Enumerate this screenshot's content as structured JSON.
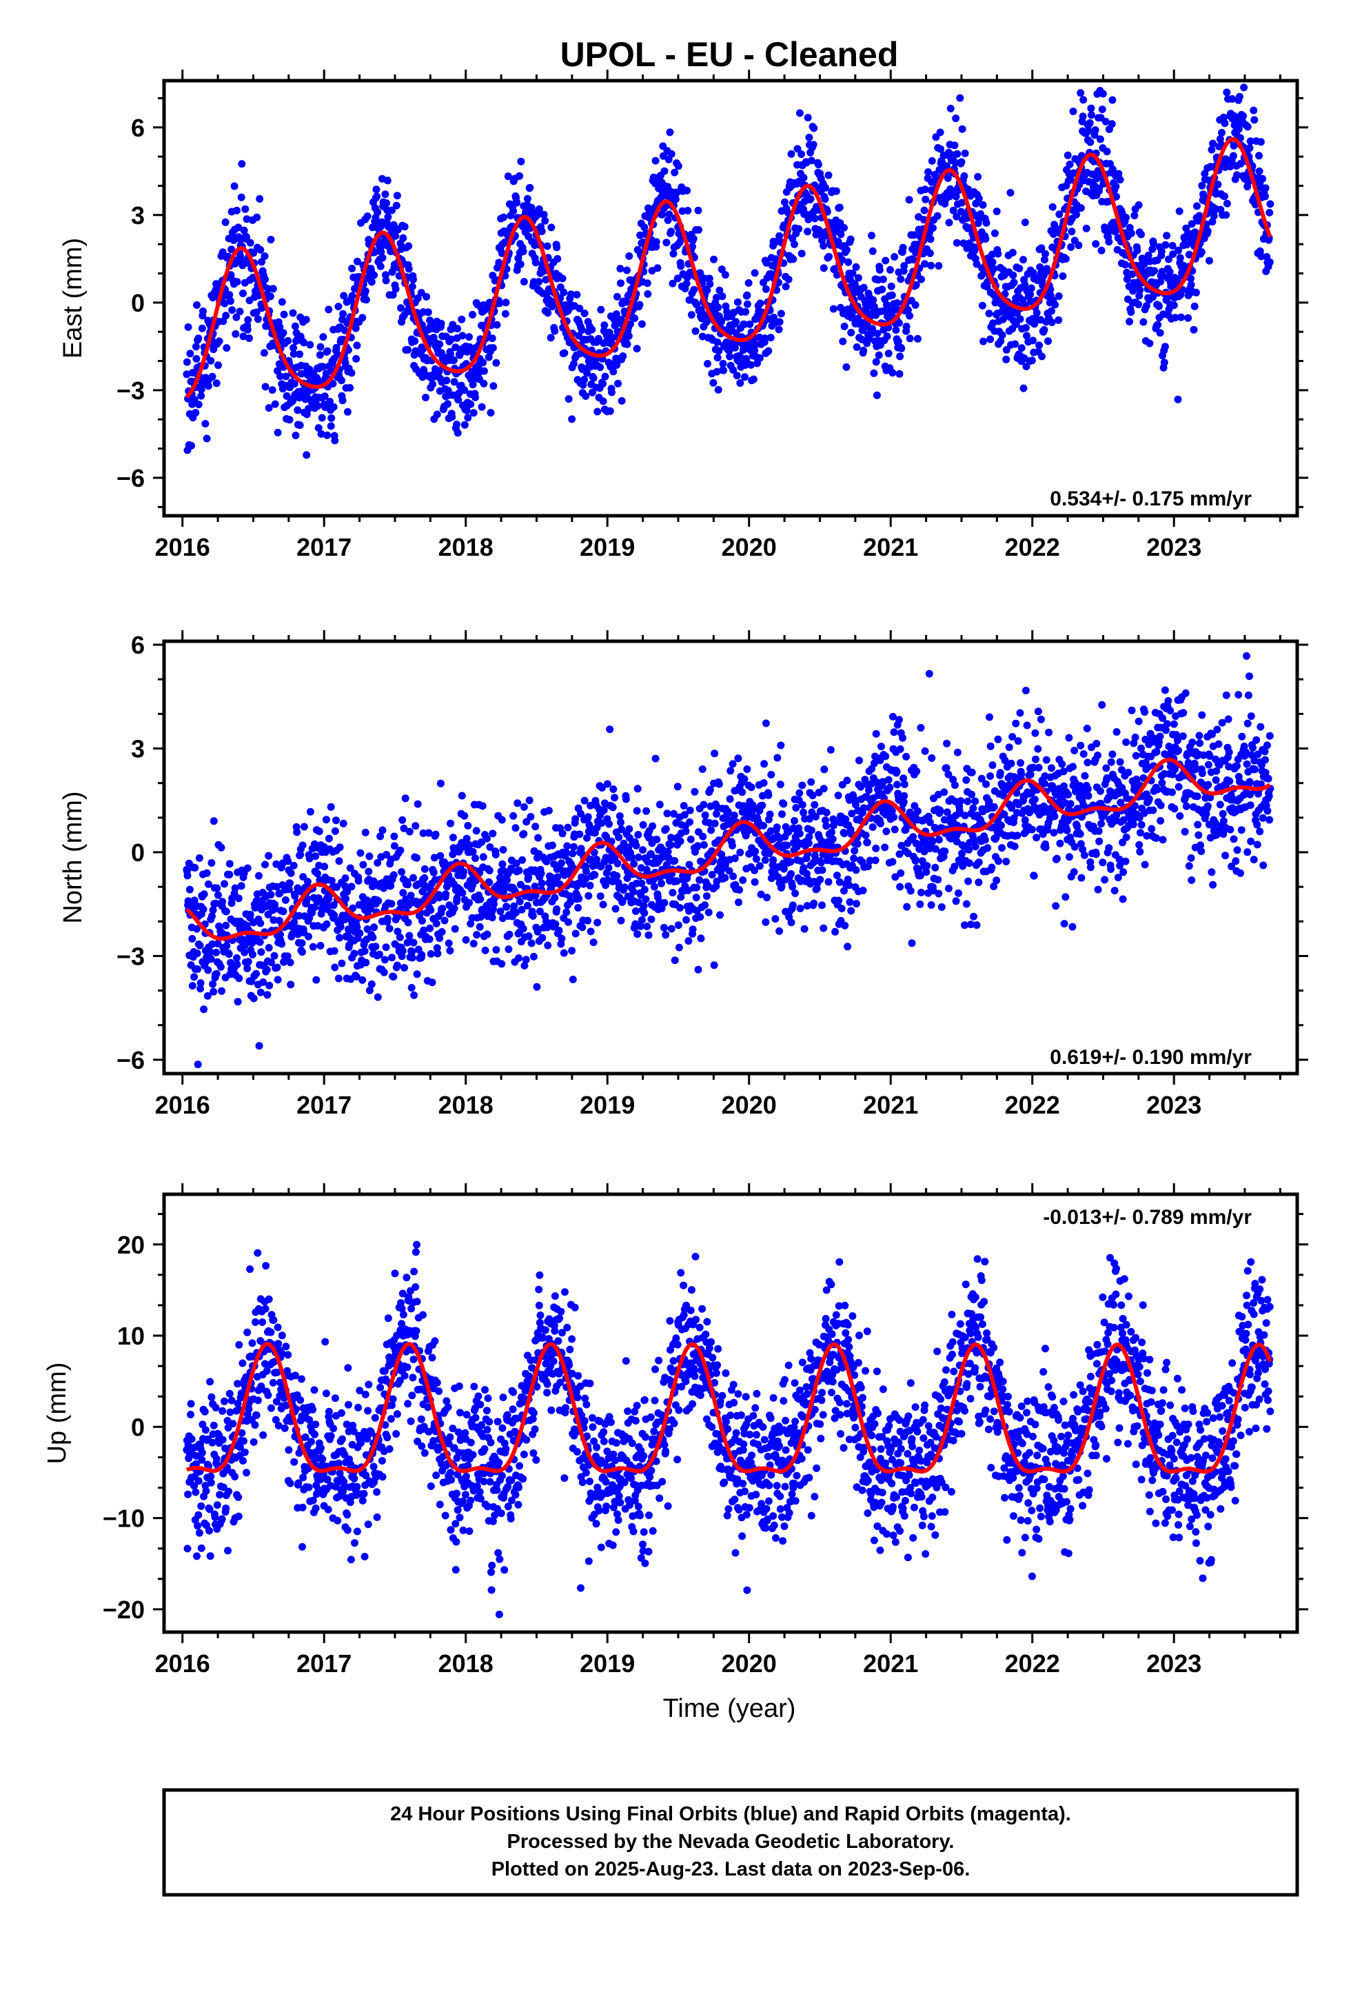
{
  "figure": {
    "title": "UPOL  - EU - Cleaned",
    "xlabel": "Time (year)",
    "footer": [
      "24 Hour Positions Using Final Orbits (blue) and Rapid Orbits (magenta).",
      "Processed by the Nevada Geodetic Laboratory.",
      "Plotted on 2025-Aug-23. Last data on 2023-Sep-06."
    ],
    "colors": {
      "points": "#0000ff",
      "model": "#ff0000",
      "frame": "#000000"
    }
  },
  "chart_data": [
    {
      "type": "scatter",
      "ylabel": "East (mm)",
      "rate_text": "0.534+/- 0.175 mm/yr",
      "rate_position": "bottom-right",
      "xlim": [
        2015.87,
        2023.87
      ],
      "ylim": [
        -7.3,
        7.6
      ],
      "x_ticks": [
        2016,
        2017,
        2018,
        2019,
        2020,
        2021,
        2022,
        2023
      ],
      "x_tick_labels": [
        "2016",
        "2017",
        "2018",
        "2019",
        "2020",
        "2021",
        "2022",
        "2023"
      ],
      "y_ticks": [
        -6,
        -3,
        0,
        3,
        6
      ],
      "y_tick_labels": [
        "−6",
        "−3",
        "0",
        "3",
        "6"
      ],
      "x_range": [
        2016.03,
        2023.68
      ],
      "model": {
        "intercept": -1.3,
        "slope": 0.534,
        "t0": 2016.0,
        "annual_amp": 2.5,
        "annual_peak": 0.42,
        "semi_amp": 0.45,
        "semi_peak": 0.4
      },
      "noise": 1.0,
      "series": [
        {
          "kind": "points",
          "values": "daily solutions (about 2800 points)"
        },
        {
          "kind": "model_curve"
        }
      ]
    },
    {
      "type": "scatter",
      "ylabel": "North (mm)",
      "rate_text": "0.619+/- 0.190 mm/yr",
      "rate_position": "bottom-right",
      "xlim": [
        2015.87,
        2023.87
      ],
      "ylim": [
        -6.4,
        6.1
      ],
      "x_ticks": [
        2016,
        2017,
        2018,
        2019,
        2020,
        2021,
        2022,
        2023
      ],
      "x_tick_labels": [
        "2016",
        "2017",
        "2018",
        "2019",
        "2020",
        "2021",
        "2022",
        "2023"
      ],
      "y_ticks": [
        -6,
        -3,
        0,
        3,
        6
      ],
      "y_tick_labels": [
        "−6",
        "−3",
        "0",
        "3",
        "6"
      ],
      "x_range": [
        2016.03,
        2023.68
      ],
      "model": {
        "intercept": -2.3,
        "slope": 0.6,
        "t0": 2016.0,
        "annual_amp": 0.55,
        "annual_peak": 0.96,
        "semi_amp": 0.25,
        "semi_peak": 0.45
      },
      "noise": 1.05,
      "series": [
        {
          "kind": "points",
          "values": "daily solutions (about 2800 points)"
        },
        {
          "kind": "model_curve"
        }
      ]
    },
    {
      "type": "scatter",
      "ylabel": "Up (mm)",
      "rate_text": "-0.013+/- 0.789 mm/yr",
      "rate_position": "top-right",
      "xlim": [
        2015.87,
        2023.87
      ],
      "ylim": [
        -22.5,
        25.5
      ],
      "x_ticks": [
        2016,
        2017,
        2018,
        2019,
        2020,
        2021,
        2022,
        2023
      ],
      "x_tick_labels": [
        "2016",
        "2017",
        "2018",
        "2019",
        "2020",
        "2021",
        "2022",
        "2023"
      ],
      "y_ticks": [
        -20,
        -10,
        0,
        10,
        20
      ],
      "y_tick_labels": [
        "−20",
        "−10",
        "0",
        "10",
        "20"
      ],
      "x_range": [
        2016.03,
        2023.68
      ],
      "model": {
        "intercept": 0.0,
        "slope": -0.013,
        "t0": 2016.0,
        "annual_amp": 6.8,
        "annual_peak": 0.6,
        "semi_amp": 2.3,
        "semi_peak": 0.1
      },
      "noise": 4.3,
      "series": [
        {
          "kind": "points",
          "values": "daily solutions (about 2800 points)"
        },
        {
          "kind": "model_curve"
        }
      ]
    }
  ]
}
